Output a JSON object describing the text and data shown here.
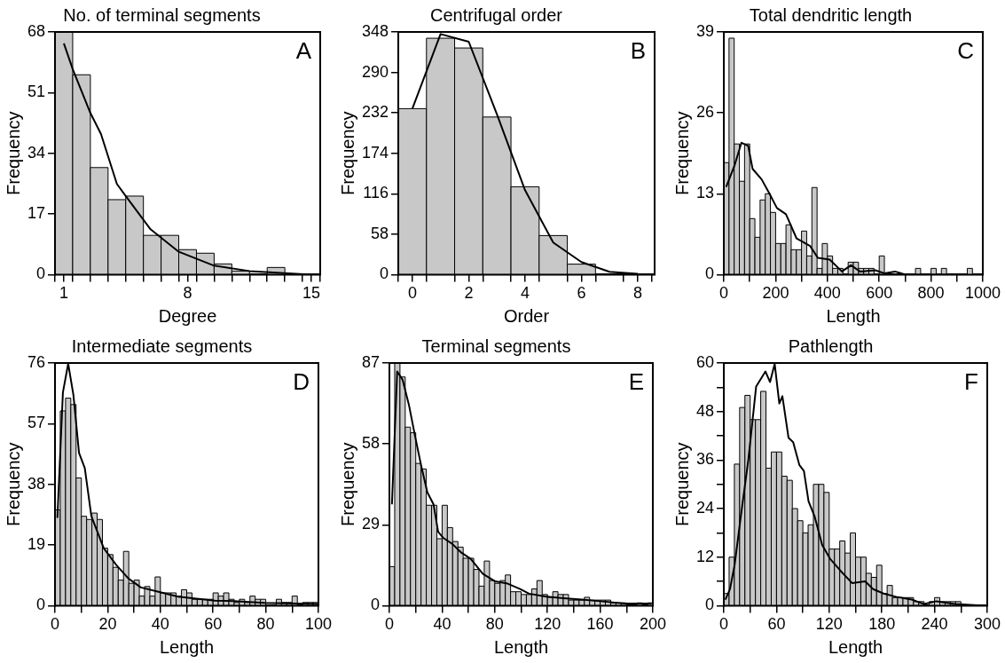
{
  "chart_data": [
    {
      "type": "histogram",
      "title": "No. of terminal segments",
      "xlabel": "Degree",
      "ylabel": "Frequency",
      "annotations": [
        "A"
      ],
      "color": "#c8c8c8",
      "bins": [
        0.5,
        1.5,
        2.5,
        3.5,
        4.5,
        5.5,
        6.5,
        7.5,
        8.5,
        9.5,
        10.5,
        11.5,
        12.5,
        13.5,
        14.5,
        15.5
      ],
      "values": [
        68,
        56,
        30,
        21,
        22,
        11,
        11,
        7,
        6,
        3,
        1,
        0,
        2,
        0,
        0
      ],
      "xlim": [
        0.5,
        15.5
      ],
      "ylim": [
        0,
        68
      ],
      "xticks": [
        {
          "value": 0.5,
          "label": null
        },
        1,
        {
          "value": 1.5,
          "label": null
        },
        {
          "value": 2.5,
          "label": null
        },
        {
          "value": 3.5,
          "label": null
        },
        {
          "value": 4.5,
          "label": null
        },
        {
          "value": 5.5,
          "label": null
        },
        {
          "value": 6.5,
          "label": null
        },
        {
          "value": 7.5,
          "label": null
        },
        8,
        {
          "value": 8.5,
          "label": null
        },
        {
          "value": 9.5,
          "label": null
        },
        {
          "value": 10.5,
          "label": null
        },
        {
          "value": 11.5,
          "label": null
        },
        {
          "value": 12.5,
          "label": null
        },
        {
          "value": 13.5,
          "label": null
        },
        {
          "value": 14.5,
          "label": null
        },
        15,
        {
          "value": 15.5,
          "label": null
        }
      ],
      "yticks": [
        0,
        17,
        34,
        51,
        68
      ],
      "series": [
        {
          "type": "line",
          "color": "#000000",
          "x": [
            1,
            1.5,
            2.5,
            3.1,
            4,
            4.5,
            5.9,
            7.5,
            9.5,
            11.5,
            13.5,
            15
          ],
          "values": [
            64.8,
            57.6,
            45.3,
            39.4,
            25.4,
            22,
            12.7,
            6.4,
            2.5,
            1,
            0.4,
            0
          ]
        }
      ]
    },
    {
      "type": "histogram",
      "title": "Centrifugal order",
      "xlabel": "Order",
      "ylabel": "Frequency",
      "annotations": [
        "B"
      ],
      "color": "#c8c8c8",
      "bins": [
        -0.5,
        0.5,
        1.5,
        2.5,
        3.5,
        4.5,
        5.5,
        6.5
      ],
      "values": [
        238,
        339,
        325,
        226,
        126,
        56,
        15
      ],
      "xlim": [
        -0.5,
        8.6
      ],
      "ylim": [
        0,
        348
      ],
      "xticks": [
        {
          "value": -0.5,
          "label": null
        },
        0,
        {
          "value": 0.5,
          "label": null
        },
        {
          "value": 1.5,
          "label": null
        },
        2,
        {
          "value": 2.5,
          "label": null
        },
        {
          "value": 3.5,
          "label": null
        },
        4,
        {
          "value": 4.5,
          "label": null
        },
        {
          "value": 5.5,
          "label": null
        },
        6,
        {
          "value": 6.5,
          "label": null
        },
        {
          "value": 7.5,
          "label": null
        },
        8,
        {
          "value": 8.5,
          "label": null
        }
      ],
      "yticks": [
        0,
        58,
        116,
        174,
        232,
        290,
        348
      ],
      "series": [
        {
          "type": "line",
          "color": "#000000",
          "x": [
            0,
            1,
            2,
            3,
            4,
            5,
            6,
            7,
            8
          ],
          "values": [
            238,
            345,
            334,
            230,
            121,
            46,
            18,
            4,
            1
          ]
        }
      ]
    },
    {
      "type": "histogram",
      "title": "Total dendritic length",
      "xlabel": "Length",
      "ylabel": "Frequency",
      "annotations": [
        "C"
      ],
      "color": "#c8c8c8",
      "bins": [
        0,
        20,
        40,
        60,
        80,
        100,
        120,
        140,
        160,
        180,
        200,
        220,
        240,
        260,
        280,
        300,
        320,
        340,
        360,
        380,
        400,
        420,
        440,
        460,
        480,
        500,
        520,
        540,
        560,
        580,
        600,
        620,
        640,
        660,
        680,
        700,
        720,
        740,
        760,
        780,
        800,
        820,
        840,
        860,
        880,
        900,
        920,
        940,
        960,
        980,
        1000
      ],
      "values": [
        18,
        38,
        21,
        15,
        21,
        9,
        6,
        12,
        13,
        10,
        5,
        5,
        8,
        4,
        4,
        7,
        3,
        14,
        1,
        5,
        3,
        1,
        1,
        0,
        2,
        2,
        1,
        1,
        1,
        0,
        3,
        0,
        0,
        0,
        0,
        0,
        0,
        1,
        0,
        0,
        1,
        0,
        1,
        0,
        0,
        0,
        0,
        1,
        0,
        0
      ],
      "xlim": [
        0,
        1000
      ],
      "ylim": [
        0,
        39
      ],
      "xticks": [
        0,
        {
          "value": 100,
          "label": null
        },
        200,
        {
          "value": 300,
          "label": null
        },
        400,
        {
          "value": 500,
          "label": null
        },
        600,
        {
          "value": 700,
          "label": null
        },
        800,
        {
          "value": 900,
          "label": null
        },
        1000
      ],
      "yticks": [
        0,
        13,
        26,
        39
      ],
      "series": [
        {
          "type": "line",
          "color": "#000000",
          "x": [
            9,
            41,
            68,
            94,
            111,
            146,
            175,
            205,
            240,
            281,
            333,
            363,
            409,
            456,
            491,
            526,
            585,
            620,
            661,
            702,
            877
          ],
          "values": [
            14.1,
            17.5,
            21.2,
            20.7,
            17,
            15.3,
            13.1,
            10.7,
            9.7,
            5.8,
            4.6,
            2.7,
            2.4,
            0.5,
            1.5,
            0.5,
            0.7,
            0.2,
            0.5,
            0,
            0
          ]
        }
      ]
    },
    {
      "type": "histogram",
      "title": "Intermediate segments",
      "xlabel": "Length",
      "ylabel": "Frequency",
      "annotations": [
        "D"
      ],
      "color": "#c8c8c8",
      "bins": [
        0,
        2,
        4,
        6,
        8,
        10,
        12,
        14,
        16,
        18,
        20,
        22,
        24,
        26,
        28,
        30,
        32,
        34,
        36,
        38,
        40,
        42,
        44,
        46,
        48,
        50,
        52,
        54,
        56,
        58,
        60,
        62,
        64,
        66,
        68,
        70,
        72,
        74,
        76,
        78,
        80,
        82,
        84,
        86,
        88,
        90,
        92,
        94,
        96,
        98,
        100
      ],
      "values": [
        30,
        61,
        65,
        63,
        40,
        28,
        27,
        29,
        27,
        18,
        16,
        12,
        8,
        17,
        7,
        8,
        3,
        6,
        3,
        9,
        4,
        4,
        4,
        3,
        5,
        4,
        2,
        2,
        2,
        2,
        4,
        3,
        4,
        2,
        1,
        2,
        1,
        3,
        2,
        2,
        0,
        0,
        2,
        1,
        1,
        3,
        0,
        1,
        1,
        1
      ],
      "xlim": [
        0,
        100
      ],
      "ylim": [
        0,
        76
      ],
      "xticks": [
        0,
        {
          "value": 10,
          "label": null
        },
        20,
        {
          "value": 30,
          "label": null
        },
        40,
        {
          "value": 50,
          "label": null
        },
        60,
        {
          "value": 70,
          "label": null
        },
        80,
        {
          "value": 90,
          "label": null
        },
        100
      ],
      "yticks": [
        0,
        19,
        38,
        57,
        76
      ],
      "series": [
        {
          "type": "line",
          "color": "#000000",
          "x": [
            0.9,
            3,
            5,
            7,
            9.1,
            11.3,
            13.8,
            18.5,
            23.2,
            27.9,
            32.6,
            39.6,
            46.7,
            53.7,
            60.7,
            67.8,
            79.5,
            100
          ],
          "values": [
            27.5,
            66.8,
            75.8,
            65.9,
            47.9,
            43.1,
            28,
            18,
            12.8,
            8.5,
            5.7,
            4.3,
            2.8,
            2.2,
            1.6,
            1.4,
            0.9,
            0.5
          ]
        }
      ]
    },
    {
      "type": "histogram",
      "title": "Terminal segments",
      "xlabel": "Length",
      "ylabel": "Frequency",
      "annotations": [
        "E"
      ],
      "color": "#c8c8c8",
      "bins": [
        0,
        4,
        8,
        12,
        16,
        20,
        24,
        28,
        32,
        36,
        40,
        44,
        48,
        52,
        56,
        60,
        64,
        68,
        72,
        76,
        80,
        84,
        88,
        92,
        96,
        100,
        104,
        108,
        112,
        116,
        120,
        124,
        128,
        132,
        136,
        140,
        144,
        148,
        152,
        156,
        160,
        164,
        168,
        172,
        176,
        180,
        184,
        188,
        192,
        196,
        200
      ],
      "values": [
        14,
        87,
        82,
        64,
        62,
        51,
        49,
        36,
        36,
        24,
        36,
        28,
        23,
        21,
        17,
        17,
        13,
        7,
        16,
        9,
        8,
        9,
        11,
        5,
        5,
        4,
        4,
        6,
        9,
        4,
        3,
        5,
        4,
        4,
        2,
        2,
        2,
        3,
        2,
        2,
        2,
        2,
        1,
        1,
        1,
        0,
        0,
        1,
        0,
        1
      ],
      "xlim": [
        0,
        200
      ],
      "ylim": [
        0,
        87
      ],
      "xticks": [
        0,
        {
          "value": 20,
          "label": null
        },
        40,
        {
          "value": 60,
          "label": null
        },
        80,
        {
          "value": 100,
          "label": null
        },
        120,
        {
          "value": 140,
          "label": null
        },
        160,
        {
          "value": 180,
          "label": null
        },
        200
      ],
      "yticks": [
        0,
        29,
        58,
        87
      ],
      "series": [
        {
          "type": "line",
          "color": "#000000",
          "x": [
            1.9,
            5.9,
            10,
            14.8,
            19.5,
            24,
            28.8,
            33.5,
            37,
            40.6,
            47.6,
            54.6,
            61.7,
            71,
            80.4,
            89.8,
            99.2,
            106,
            118,
            132,
            146,
            160,
            179,
            199
          ],
          "values": [
            36.3,
            84,
            81,
            72,
            60.7,
            50.4,
            40.6,
            36.3,
            26.5,
            24.4,
            22.2,
            19,
            16.8,
            11.4,
            8.7,
            7.9,
            6,
            4.3,
            3.3,
            2.7,
            2.2,
            1.6,
            0.8,
            0.8
          ]
        }
      ]
    },
    {
      "type": "histogram",
      "title": "Pathlength",
      "xlabel": "Length",
      "ylabel": "Frequency",
      "annotations": [
        "F"
      ],
      "color": "#c8c8c8",
      "bins": [
        0,
        6,
        12,
        18,
        24,
        30,
        36,
        42,
        48,
        54,
        60,
        66,
        72,
        78,
        84,
        90,
        96,
        102,
        108,
        114,
        120,
        126,
        132,
        138,
        144,
        150,
        156,
        162,
        168,
        174,
        180,
        186,
        192,
        198,
        204,
        210,
        216,
        222,
        228,
        234,
        240,
        246,
        252,
        258,
        264,
        270,
        276,
        282,
        288,
        294,
        300
      ],
      "values": [
        3,
        12,
        35,
        49,
        52,
        46,
        46,
        53,
        34,
        38,
        38,
        32,
        31,
        24,
        21,
        18,
        20,
        30,
        30,
        28,
        14,
        14,
        16,
        13,
        18,
        12,
        12,
        8,
        7,
        10,
        3,
        5,
        2,
        2,
        2,
        2,
        1,
        1,
        0,
        1,
        2,
        1,
        1,
        1,
        1,
        0,
        0,
        0,
        0,
        0
      ],
      "xlim": [
        0,
        300
      ],
      "ylim": [
        0,
        60
      ],
      "xticks": [
        0,
        {
          "value": 30,
          "label": null
        },
        60,
        {
          "value": 90,
          "label": null
        },
        120,
        {
          "value": 150,
          "label": null
        },
        180,
        {
          "value": 210,
          "label": null
        },
        240,
        {
          "value": 270,
          "label": null
        },
        300
      ],
      "yticks": [
        0,
        {
          "value": 6,
          "label": null
        },
        12,
        {
          "value": 18,
          "label": null
        },
        24,
        {
          "value": 30,
          "label": null
        },
        36,
        {
          "value": 42,
          "label": null
        },
        48,
        {
          "value": 54,
          "label": null
        },
        60
      ],
      "series": [
        {
          "type": "line",
          "color": "#000000",
          "x": [
            1.8,
            7,
            12.3,
            19.3,
            28,
            36.8,
            47.4,
            52.6,
            57.9,
            63.2,
            66.7,
            73.7,
            79,
            86,
            91.2,
            96.5,
            103.5,
            112,
            121,
            133,
            146,
            161,
            170,
            182,
            196,
            214,
            228,
            242,
            263,
            298
          ],
          "values": [
            1.5,
            4.1,
            10.1,
            22,
            36.2,
            54.2,
            57.9,
            55.3,
            59.8,
            50,
            51.8,
            41.5,
            40.4,
            34.8,
            33.3,
            25.8,
            22,
            15,
            11.6,
            8.6,
            5.6,
            6,
            4.1,
            3,
            2.2,
            1.5,
            0.4,
            1.1,
            0.4,
            0
          ]
        }
      ]
    }
  ]
}
